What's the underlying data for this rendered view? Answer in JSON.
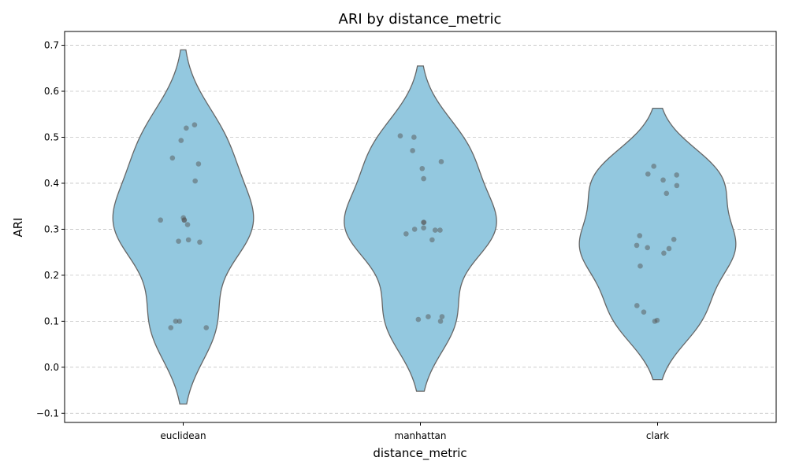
{
  "chart_data": {
    "type": "violin",
    "title": "ARI by distance_metric",
    "xlabel": "distance_metric",
    "ylabel": "ARI",
    "ylim": [
      -0.12,
      0.73
    ],
    "yticks": [
      -0.1,
      0.0,
      0.1,
      0.2,
      0.3,
      0.4,
      0.5,
      0.6,
      0.7
    ],
    "ytick_labels": [
      "−0.1",
      "0.0",
      "0.1",
      "0.2",
      "0.3",
      "0.4",
      "0.5",
      "0.6",
      "0.7"
    ],
    "grid": "y",
    "colors": {
      "violin_fill": "#93c8df",
      "violin_edge": "#666666",
      "point": "#555555"
    },
    "categories": [
      "euclidean",
      "manhattan",
      "clark"
    ],
    "series": [
      {
        "category": "euclidean",
        "range": [
          -0.08,
          0.69
        ],
        "points": [
          0.527,
          0.52,
          0.493,
          0.455,
          0.442,
          0.405,
          0.325,
          0.32,
          0.32,
          0.32,
          0.31,
          0.277,
          0.274,
          0.272,
          0.1,
          0.1,
          0.086,
          0.086
        ]
      },
      {
        "category": "manhattan",
        "range": [
          -0.052,
          0.655
        ],
        "points": [
          0.503,
          0.5,
          0.471,
          0.447,
          0.432,
          0.41,
          0.315,
          0.315,
          0.303,
          0.3,
          0.298,
          0.298,
          0.29,
          0.277,
          0.11,
          0.11,
          0.104,
          0.1
        ]
      },
      {
        "category": "clark",
        "range": [
          -0.027,
          0.563
        ],
        "points": [
          0.437,
          0.42,
          0.418,
          0.407,
          0.395,
          0.378,
          0.286,
          0.278,
          0.265,
          0.26,
          0.258,
          0.248,
          0.22,
          0.134,
          0.12,
          0.102,
          0.1
        ]
      }
    ]
  }
}
